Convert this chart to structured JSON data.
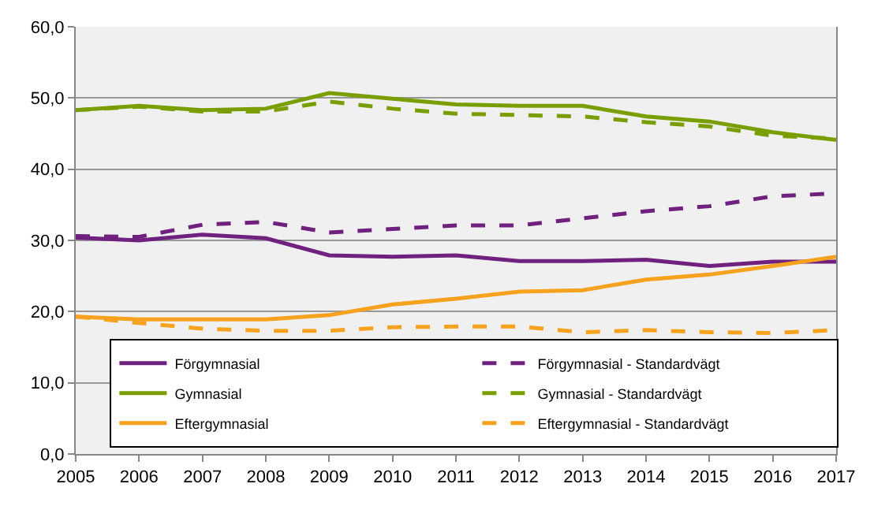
{
  "chart_data": {
    "type": "line",
    "x": [
      2005,
      2006,
      2007,
      2008,
      2009,
      2010,
      2011,
      2012,
      2013,
      2014,
      2015,
      2016,
      2017
    ],
    "series": [
      {
        "name": "Förgymnasial",
        "color": "#70207f",
        "line_style": "solid",
        "values": [
          30.4,
          30.0,
          30.8,
          30.3,
          27.9,
          27.7,
          27.9,
          27.1,
          27.1,
          27.3,
          26.4,
          27.0,
          27.0
        ]
      },
      {
        "name": "Förgymnasial - Standardvägt",
        "color": "#70207f",
        "line_style": "dashed",
        "values": [
          30.6,
          30.5,
          32.2,
          32.6,
          31.1,
          31.6,
          32.1,
          32.1,
          33.1,
          34.1,
          34.8,
          36.2,
          36.6
        ]
      },
      {
        "name": "Gymnasial",
        "color": "#7a9e00",
        "line_style": "solid",
        "values": [
          48.3,
          48.9,
          48.3,
          48.5,
          50.7,
          49.9,
          49.1,
          48.9,
          48.9,
          47.4,
          46.7,
          45.2,
          44.1
        ]
      },
      {
        "name": "Gymnasial - Standardvägt",
        "color": "#7a9e00",
        "line_style": "dashed",
        "values": [
          48.3,
          48.8,
          48.1,
          48.1,
          49.5,
          48.5,
          47.8,
          47.6,
          47.4,
          46.6,
          46.0,
          44.7,
          44.3
        ]
      },
      {
        "name": "Eftergymnasial",
        "color": "#f7a21e",
        "line_style": "solid",
        "values": [
          19.3,
          18.9,
          18.9,
          18.9,
          19.5,
          21.0,
          21.8,
          22.8,
          23.0,
          24.5,
          25.2,
          26.4,
          27.7
        ]
      },
      {
        "name": "Eftergymnasial - Standardvägt",
        "color": "#f7a21e",
        "line_style": "dashed",
        "values": [
          19.3,
          18.4,
          17.6,
          17.3,
          17.3,
          17.8,
          17.9,
          17.9,
          17.1,
          17.4,
          17.1,
          17.0,
          17.4
        ]
      }
    ],
    "xlim": [
      2005,
      2017
    ],
    "xticks": [
      2005,
      2006,
      2007,
      2008,
      2009,
      2010,
      2011,
      2012,
      2013,
      2014,
      2015,
      2016,
      2017
    ],
    "ylim": [
      0,
      60
    ],
    "yticks": [
      {
        "value": 0,
        "label": "0,0"
      },
      {
        "value": 10,
        "label": "10,0"
      },
      {
        "value": 20,
        "label": "20,0"
      },
      {
        "value": 30,
        "label": "30,0"
      },
      {
        "value": 40,
        "label": "40,0"
      },
      {
        "value": 50,
        "label": "50,0"
      },
      {
        "value": 60,
        "label": "60,0"
      }
    ],
    "grid": "y",
    "legend": "bottom",
    "marker": "none"
  }
}
